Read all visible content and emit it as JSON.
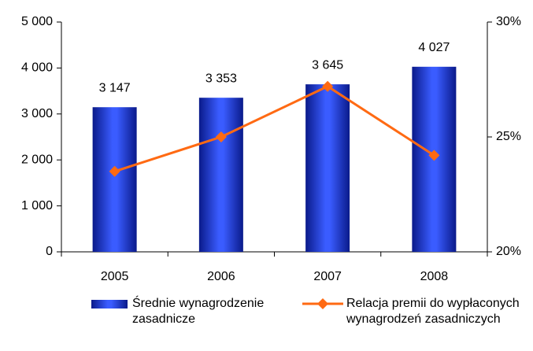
{
  "chart_data": {
    "type": "bar",
    "categories": [
      "2005",
      "2006",
      "2007",
      "2008"
    ],
    "series": [
      {
        "name": "Średnie wynagrodzenie zasadnicze",
        "type": "bar",
        "color": "#2a4fe8",
        "values": [
          3147,
          3353,
          3645,
          4027
        ],
        "value_labels": [
          "3 147",
          "3 353",
          "3 645",
          "4 027"
        ]
      },
      {
        "name": "Relacja premii do wypłaconych wynagrodzeń zasadniczych",
        "type": "line",
        "color": "#ff6a13",
        "axis": "y2",
        "values": [
          23.5,
          25.0,
          27.2,
          24.2
        ]
      }
    ],
    "ylim": [
      0,
      5000
    ],
    "yticks": [
      {
        "value": 0,
        "label": "0"
      },
      {
        "value": 1000,
        "label": "1 000"
      },
      {
        "value": 2000,
        "label": "2 000"
      },
      {
        "value": 3000,
        "label": "3 000"
      },
      {
        "value": 4000,
        "label": "4 000"
      },
      {
        "value": 5000,
        "label": "5 000"
      }
    ],
    "y2lim": [
      20,
      30
    ],
    "y2ticks": [
      {
        "value": 20,
        "label": "20%"
      },
      {
        "value": 25,
        "label": "25%"
      },
      {
        "value": 30,
        "label": "30%"
      }
    ],
    "legend": "bottom"
  }
}
